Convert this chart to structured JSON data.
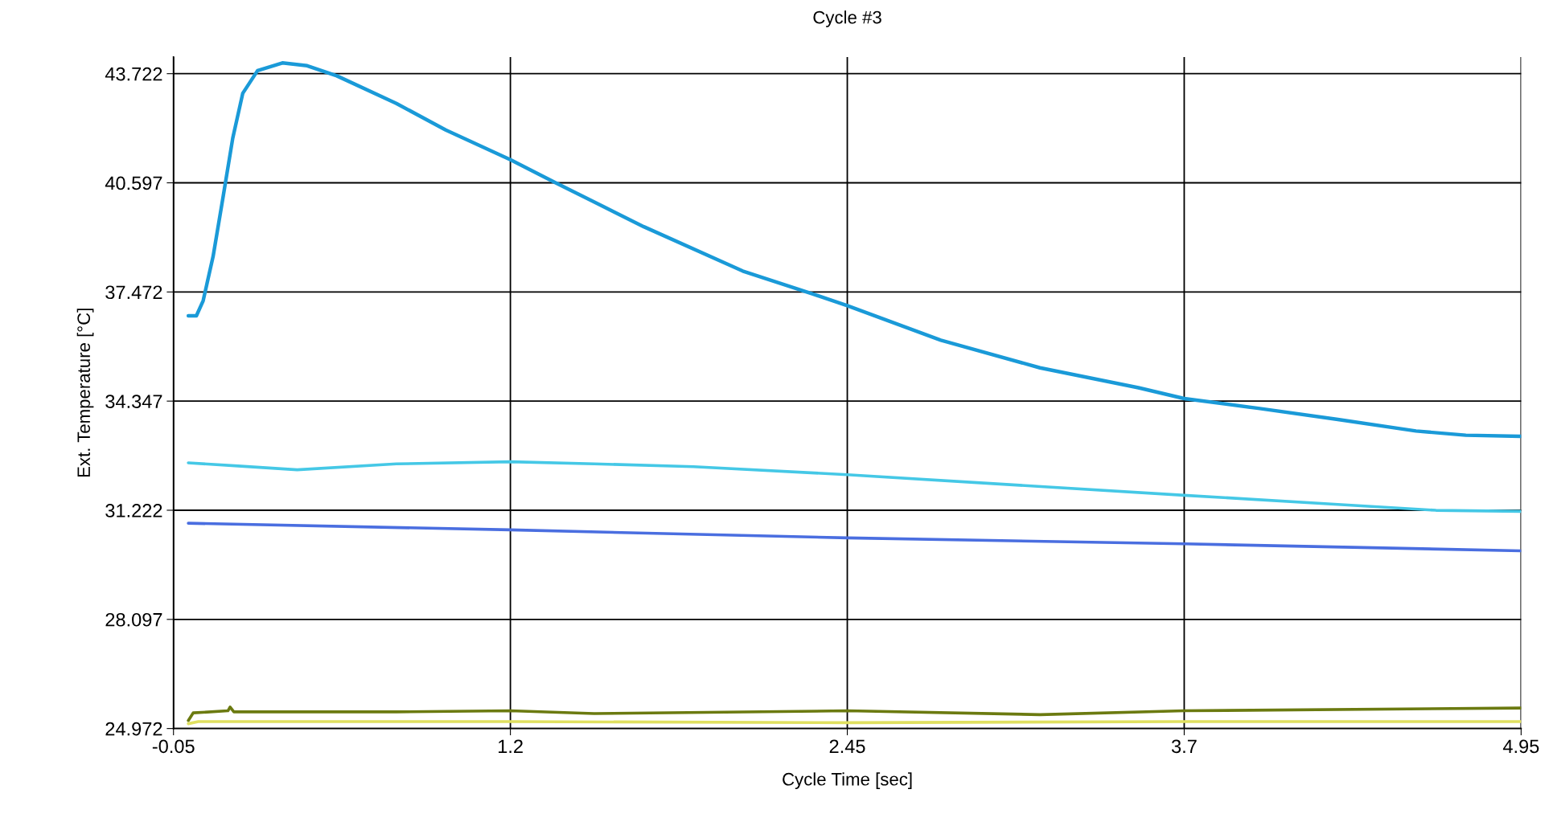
{
  "chart_data": {
    "type": "line",
    "title": "Cycle #3",
    "xlabel": "Cycle Time [sec]",
    "ylabel": "Ext. Temperature [°C]",
    "xlim": [
      -0.05,
      4.95
    ],
    "xticks": [
      -0.05,
      1.2,
      2.45,
      3.7,
      4.95
    ],
    "ylim": [
      24.972,
      44.2
    ],
    "yticks": [
      24.972,
      28.097,
      31.222,
      34.347,
      37.472,
      40.597,
      43.722
    ],
    "grid": true,
    "legend": false,
    "marker": "none",
    "line_style": "solid",
    "series": [
      {
        "color": "#1a9ad8",
        "x": [
          0.005,
          0.035,
          0.06,
          0.097,
          0.134,
          0.17,
          0.207,
          0.262,
          0.354,
          0.446,
          0.556,
          0.777,
          0.96,
          1.2,
          1.365,
          1.695,
          2.062,
          2.32,
          2.45,
          2.797,
          3.165,
          3.53,
          3.7,
          3.975,
          4.27,
          4.56,
          4.745,
          4.95
        ],
        "values": [
          36.79,
          36.79,
          37.22,
          38.49,
          40.19,
          41.88,
          43.16,
          43.81,
          44.03,
          43.95,
          43.66,
          42.87,
          42.11,
          41.26,
          40.61,
          39.34,
          38.07,
          37.42,
          37.08,
          36.09,
          35.3,
          34.73,
          34.42,
          34.14,
          33.82,
          33.49,
          33.37,
          33.34
        ]
      },
      {
        "color": "#45c8e6",
        "x": [
          0.005,
          0.189,
          0.409,
          0.777,
          1.2,
          1.511,
          1.879,
          2.45,
          2.98,
          3.7,
          4.27,
          4.634,
          4.95
        ],
        "values": [
          32.58,
          32.49,
          32.38,
          32.55,
          32.61,
          32.55,
          32.47,
          32.24,
          31.99,
          31.65,
          31.39,
          31.22,
          31.19
        ]
      },
      {
        "color": "#4a6ee0",
        "x": [
          0.005,
          1.2,
          2.45,
          3.7,
          4.95
        ],
        "values": [
          30.85,
          30.66,
          30.43,
          30.26,
          30.06
        ]
      },
      {
        "color": "#6b7a10",
        "x": [
          0.005,
          0.023,
          0.152,
          0.16,
          0.174,
          0.777,
          1.2,
          1.511,
          2.45,
          3.165,
          3.7,
          4.95
        ],
        "values": [
          25.2,
          25.42,
          25.48,
          25.59,
          25.45,
          25.45,
          25.48,
          25.4,
          25.48,
          25.37,
          25.48,
          25.56
        ]
      },
      {
        "color": "#e0e060",
        "x": [
          0.005,
          0.042,
          1.2,
          2.45,
          3.7,
          4.95
        ],
        "values": [
          25.11,
          25.17,
          25.17,
          25.14,
          25.17,
          25.17
        ]
      }
    ]
  }
}
